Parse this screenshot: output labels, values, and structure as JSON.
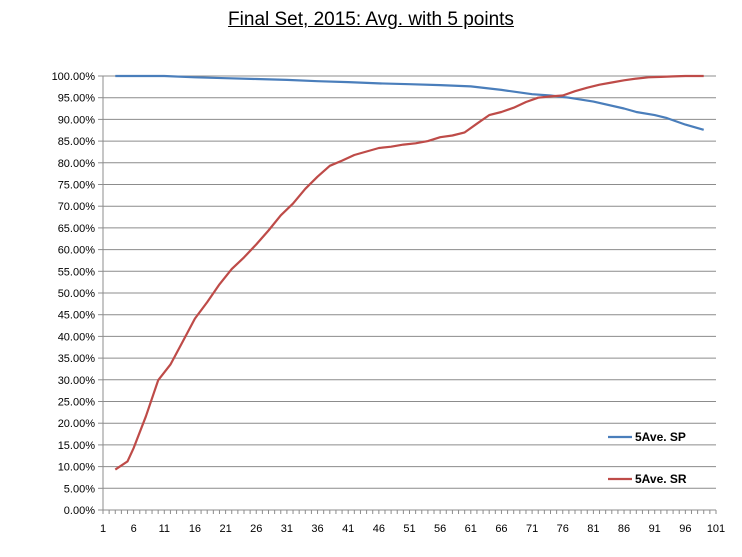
{
  "chart_data": {
    "type": "line",
    "title": "Final Set, 2015: Avg. with 5 points",
    "xlabel": "",
    "ylabel": "",
    "xlim": [
      1,
      101
    ],
    "ylim": [
      0,
      100
    ],
    "x_ticks": [
      "1",
      "6",
      "11",
      "16",
      "21",
      "26",
      "31",
      "36",
      "41",
      "46",
      "51",
      "56",
      "61",
      "66",
      "71",
      "76",
      "81",
      "86",
      "91",
      "96",
      "101"
    ],
    "y_ticks": [
      "0.00%",
      "5.00%",
      "10.00%",
      "15.00%",
      "20.00%",
      "25.00%",
      "30.00%",
      "35.00%",
      "40.00%",
      "45.00%",
      "50.00%",
      "55.00%",
      "60.00%",
      "65.00%",
      "70.00%",
      "75.00%",
      "80.00%",
      "85.00%",
      "90.00%",
      "95.00%",
      "100.00%"
    ],
    "grid": "horizontal",
    "legend_position": "bottom-right",
    "series": [
      {
        "name": "5Ave. SP",
        "color": "#4a7ebb",
        "x": [
          3,
          6,
          11,
          16,
          21,
          26,
          31,
          36,
          41,
          46,
          51,
          56,
          61,
          66,
          71,
          74,
          77,
          81,
          86,
          88,
          91,
          93,
          96,
          99
        ],
        "y": [
          100,
          100,
          100,
          99.7,
          99.5,
          99.3,
          99.1,
          98.8,
          98.6,
          98.3,
          98.1,
          97.9,
          97.6,
          96.8,
          95.8,
          95.5,
          95,
          94.1,
          92.5,
          91.7,
          91,
          90.3,
          88.8,
          87.6
        ]
      },
      {
        "name": "5Ave. SR",
        "color": "#be4b48",
        "x": [
          3,
          5,
          6,
          8,
          10,
          12,
          14,
          16,
          18,
          20,
          22,
          24,
          26,
          28,
          30,
          32,
          34,
          36,
          38,
          40,
          42,
          44,
          46,
          48,
          50,
          52,
          54,
          56,
          58,
          60,
          62,
          64,
          66,
          68,
          70,
          72,
          74,
          76,
          78,
          80,
          82,
          84,
          86,
          88,
          90,
          92,
          94,
          96,
          99
        ],
        "y": [
          9.3,
          11.2,
          14.3,
          21.6,
          29.9,
          33.5,
          38.8,
          44.1,
          47.9,
          52,
          55.5,
          58.2,
          61.2,
          64.4,
          67.9,
          70.6,
          74,
          76.8,
          79.3,
          80.5,
          81.8,
          82.6,
          83.4,
          83.7,
          84.2,
          84.5,
          85,
          85.9,
          86.3,
          87,
          89,
          91,
          91.7,
          92.7,
          94,
          95,
          95.3,
          95.5,
          96.5,
          97.3,
          98,
          98.5,
          99,
          99.4,
          99.7,
          99.8,
          99.9,
          100,
          100
        ]
      }
    ]
  }
}
